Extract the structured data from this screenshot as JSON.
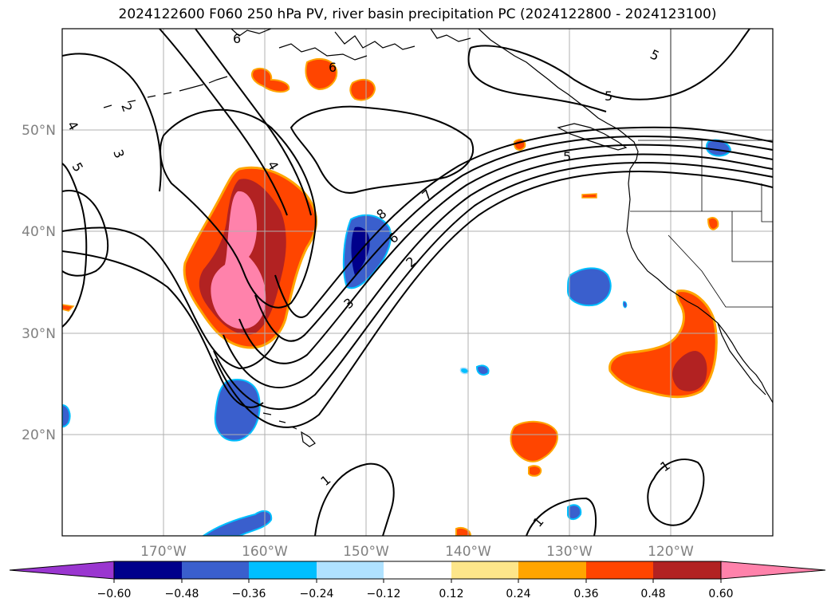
{
  "title": "2024122600 F060 250 hPa PV, river basin precipitation PC (2024122800 - 2024123100)",
  "map": {
    "projection": "PlateCarree",
    "lon_range": [
      180,
      -110
    ],
    "lat_range": [
      10,
      60
    ],
    "lat_labels": [
      "20°N",
      "30°N",
      "40°N",
      "50°N"
    ],
    "lon_labels": [
      "170°W",
      "160°W",
      "150°W",
      "140°W",
      "130°W",
      "120°W"
    ],
    "gridlines": true,
    "coastlines": true,
    "political_boundaries": true
  },
  "contour": {
    "field": "250 hPa PV",
    "color": "#000000",
    "labels": [
      "1",
      "1",
      "1",
      "2",
      "2",
      "3",
      "3",
      "4",
      "4",
      "5",
      "5",
      "5",
      "5",
      "6",
      "6",
      "6",
      "7",
      "8"
    ]
  },
  "colorbar": {
    "extend": "both",
    "tick_labels": [
      "−0.60",
      "−0.48",
      "−0.36",
      "−0.24",
      "−0.12",
      "0.12",
      "0.24",
      "0.36",
      "0.48",
      "0.60"
    ],
    "colors": [
      "#9a36d0",
      "#00008b",
      "#3a5fcd",
      "#00bfff",
      "#b0e2ff",
      "#ffffff",
      "#fde68a",
      "#ffa500",
      "#ff4500",
      "#b22222",
      "#ff82ab"
    ]
  }
}
